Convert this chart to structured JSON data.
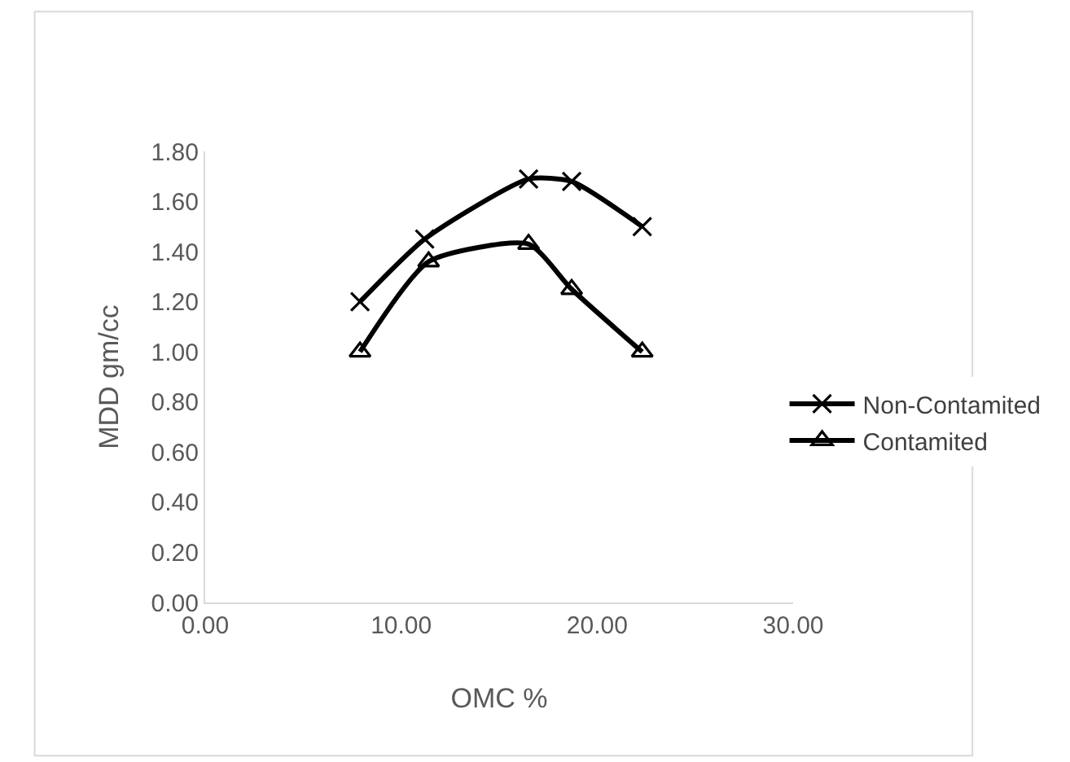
{
  "chart_data": {
    "type": "line",
    "xlabel": "OMC %",
    "ylabel": "MDD gm/cc",
    "xlim": [
      0,
      30
    ],
    "xticks": [
      {
        "value": 0,
        "label": "0.00"
      },
      {
        "value": 10,
        "label": "10.00"
      },
      {
        "value": 20,
        "label": "20.00"
      },
      {
        "value": 30,
        "label": "30.00"
      }
    ],
    "ylim": [
      0,
      1.8
    ],
    "yticks": [
      {
        "value": 0,
        "label": "0.00"
      },
      {
        "value": 0.2,
        "label": "0.20"
      },
      {
        "value": 0.4,
        "label": "0.40"
      },
      {
        "value": 0.6,
        "label": "0.60"
      },
      {
        "value": 0.8,
        "label": "0.80"
      },
      {
        "value": 1.0,
        "label": "1.00"
      },
      {
        "value": 1.2,
        "label": "1.20"
      },
      {
        "value": 1.4,
        "label": "1.40"
      },
      {
        "value": 1.6,
        "label": "1.60"
      },
      {
        "value": 1.8,
        "label": "1.80"
      }
    ],
    "legend": "right",
    "series": [
      {
        "name": "Non-Contamited",
        "color": "#000000",
        "marker": "cross",
        "x": [
          7.9,
          11.2,
          16.5,
          18.7,
          22.3
        ],
        "values": [
          1.2,
          1.45,
          1.69,
          1.68,
          1.5
        ]
      },
      {
        "name": "Contamited",
        "color": "#000000",
        "marker": "triangle",
        "x": [
          7.9,
          11.4,
          16.5,
          18.7,
          22.3
        ],
        "values": [
          1.0,
          1.36,
          1.43,
          1.25,
          1.0
        ]
      }
    ]
  }
}
